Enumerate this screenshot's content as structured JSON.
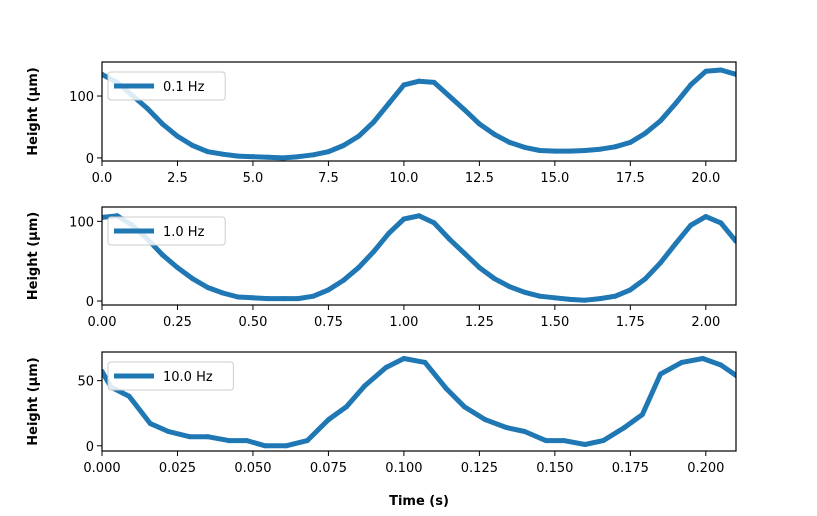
{
  "colors": {
    "series": "#1f77b4",
    "axes": "#000000",
    "legend_edge": "#cccccc"
  },
  "shared_xlabel": "Time (s)",
  "chart_data": [
    {
      "type": "line",
      "ylabel": "Height (μm)",
      "xlim": [
        0,
        21
      ],
      "ylim": [
        -5,
        155
      ],
      "xticks": [
        0,
        2.5,
        5,
        7.5,
        10,
        12.5,
        15,
        17.5,
        20
      ],
      "xtick_labels": [
        "0.0",
        "2.5",
        "5.0",
        "7.5",
        "10.0",
        "12.5",
        "15.0",
        "17.5",
        "20.0"
      ],
      "yticks": [
        0,
        100
      ],
      "ytick_labels": [
        "0",
        "100"
      ],
      "legend": "top-left",
      "series": [
        {
          "name": "0.1 Hz",
          "x": [
            0,
            0.5,
            1.0,
            1.5,
            2.0,
            2.5,
            3.0,
            3.5,
            4.0,
            4.5,
            5.0,
            5.5,
            6.0,
            6.5,
            7.0,
            7.5,
            8.0,
            8.5,
            9.0,
            9.5,
            10.0,
            10.5,
            11.0,
            11.5,
            12.0,
            12.5,
            13.0,
            13.5,
            14.0,
            14.5,
            15.0,
            15.5,
            16.0,
            16.5,
            17.0,
            17.5,
            18.0,
            18.5,
            19.0,
            19.5,
            20.0,
            20.5,
            21.0
          ],
          "y": [
            135,
            122,
            101,
            80,
            55,
            35,
            20,
            10,
            6,
            3,
            2,
            1,
            0,
            2,
            5,
            10,
            20,
            35,
            58,
            88,
            118,
            124,
            122,
            100,
            78,
            55,
            38,
            25,
            17,
            12,
            11,
            11,
            12,
            14,
            18,
            25,
            40,
            60,
            88,
            118,
            140,
            142,
            135
          ]
        }
      ]
    },
    {
      "type": "line",
      "ylabel": "Height (μm)",
      "xlim": [
        0,
        2.1
      ],
      "ylim": [
        -5,
        118
      ],
      "xticks": [
        0,
        0.25,
        0.5,
        0.75,
        1.0,
        1.25,
        1.5,
        1.75,
        2.0
      ],
      "xtick_labels": [
        "0.00",
        "0.25",
        "0.50",
        "0.75",
        "1.00",
        "1.25",
        "1.50",
        "1.75",
        "2.00"
      ],
      "yticks": [
        0,
        100
      ],
      "ytick_labels": [
        "0",
        "100"
      ],
      "legend": "top-left",
      "series": [
        {
          "name": "1.0 Hz",
          "x": [
            0,
            0.05,
            0.1,
            0.15,
            0.2,
            0.25,
            0.3,
            0.35,
            0.4,
            0.45,
            0.5,
            0.55,
            0.6,
            0.65,
            0.7,
            0.75,
            0.8,
            0.85,
            0.9,
            0.95,
            1.0,
            1.05,
            1.1,
            1.15,
            1.2,
            1.25,
            1.3,
            1.35,
            1.4,
            1.45,
            1.5,
            1.55,
            1.6,
            1.65,
            1.7,
            1.75,
            1.8,
            1.85,
            1.9,
            1.95,
            2.0,
            2.05,
            2.1
          ],
          "y": [
            105,
            107,
            95,
            78,
            58,
            42,
            28,
            17,
            10,
            5,
            4,
            3,
            3,
            3,
            6,
            14,
            26,
            42,
            62,
            85,
            103,
            107,
            98,
            78,
            60,
            42,
            28,
            18,
            11,
            6,
            4,
            2,
            1,
            3,
            6,
            14,
            28,
            48,
            72,
            95,
            106,
            98,
            75
          ]
        }
      ]
    },
    {
      "type": "line",
      "ylabel": "Height (μm)",
      "xlabel": "Time (s)",
      "xlim": [
        0,
        0.21
      ],
      "ylim": [
        -4,
        72
      ],
      "xticks": [
        0,
        0.025,
        0.05,
        0.075,
        0.1,
        0.125,
        0.15,
        0.175,
        0.2
      ],
      "xtick_labels": [
        "0.000",
        "0.025",
        "0.050",
        "0.075",
        "0.100",
        "0.125",
        "0.150",
        "0.175",
        "0.200"
      ],
      "yticks": [
        0,
        50
      ],
      "ytick_labels": [
        "0",
        "50"
      ],
      "legend": "top-left",
      "series": [
        {
          "name": "10.0 Hz",
          "x": [
            0,
            0.003,
            0.009,
            0.016,
            0.022,
            0.029,
            0.035,
            0.042,
            0.048,
            0.054,
            0.061,
            0.068,
            0.075,
            0.081,
            0.087,
            0.094,
            0.1,
            0.107,
            0.114,
            0.12,
            0.127,
            0.134,
            0.14,
            0.147,
            0.153,
            0.16,
            0.166,
            0.173,
            0.179,
            0.185,
            0.192,
            0.199,
            0.205,
            0.21
          ],
          "y": [
            57,
            45,
            38,
            17,
            11,
            7,
            7,
            4,
            4,
            0,
            0,
            4,
            20,
            30,
            46,
            60,
            67,
            64,
            44,
            30,
            20,
            14,
            11,
            4,
            4,
            1,
            4,
            14,
            24,
            55,
            64,
            67,
            62,
            54
          ]
        }
      ]
    }
  ]
}
